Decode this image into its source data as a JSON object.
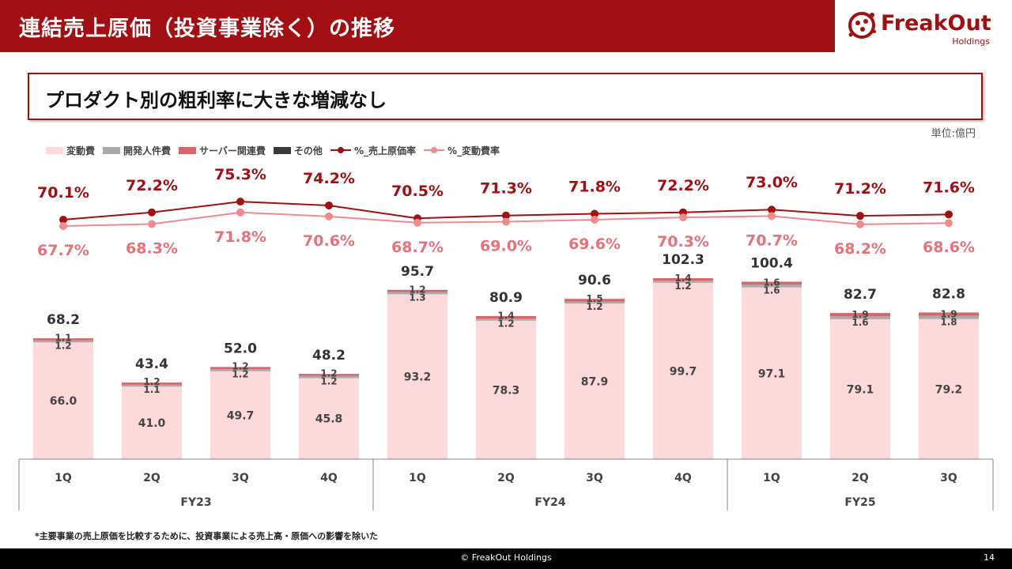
{
  "header": {
    "title": "連結売上原価（投資事業除く）の推移",
    "logo_text": "FreakOut",
    "logo_sub": "Holdings"
  },
  "subtitle": "プロダクト別の粗利率に大きな増減なし",
  "unit": "単位:億円",
  "legend": [
    {
      "label": "変動費",
      "kind": "bar",
      "color": "#fbd8da"
    },
    {
      "label": "開発人件費",
      "kind": "bar",
      "color": "#aaaaaa"
    },
    {
      "label": "サーバー関連費",
      "kind": "bar",
      "color": "#d9646b"
    },
    {
      "label": "その他",
      "kind": "bar",
      "color": "#3a3a3a"
    },
    {
      "label": "%_売上原価率",
      "kind": "line",
      "color": "#a30e12"
    },
    {
      "label": "%_変動費率",
      "kind": "line",
      "color": "#f08a8f"
    }
  ],
  "chart_data": {
    "type": "bar",
    "stacked": true,
    "categories": [
      "1Q",
      "2Q",
      "3Q",
      "4Q",
      "1Q",
      "2Q",
      "3Q",
      "4Q",
      "1Q",
      "2Q",
      "3Q"
    ],
    "groups": [
      {
        "label": "FY23",
        "count": 4
      },
      {
        "label": "FY24",
        "count": 4
      },
      {
        "label": "FY25",
        "count": 3
      }
    ],
    "totals": [
      "68.2",
      "43.4",
      "52.0",
      "48.2",
      "95.7",
      "80.9",
      "90.6",
      "102.3",
      "100.4",
      "82.7",
      "82.8"
    ],
    "series": [
      {
        "name": "変動費",
        "color": "#fbd8da",
        "values": [
          66.0,
          41.0,
          49.7,
          45.8,
          93.2,
          78.3,
          87.9,
          99.7,
          97.1,
          79.1,
          79.2
        ],
        "labels": [
          "66.0",
          "41.0",
          "49.7",
          "45.8",
          "93.2",
          "78.3",
          "87.9",
          "99.7",
          "97.1",
          "79.1",
          "79.2"
        ]
      },
      {
        "name": "開発人件費",
        "color": "#aaaaaa",
        "values": [
          1.2,
          1.1,
          1.2,
          1.2,
          1.3,
          1.2,
          1.2,
          1.2,
          1.6,
          1.6,
          1.8
        ],
        "labels": [
          "1.2",
          "1.1",
          "1.2",
          "1.2",
          "1.3",
          "1.2",
          "1.2",
          "1.2",
          "1.6",
          "1.6",
          "1.8"
        ]
      },
      {
        "name": "サーバー関連費",
        "color": "#d9646b",
        "values": [
          1.1,
          1.2,
          1.2,
          1.2,
          1.2,
          1.4,
          1.5,
          1.4,
          1.6,
          1.9,
          1.9
        ],
        "labels": [
          "1.1",
          "1.2",
          "1.2",
          "1.2",
          "1.2",
          "1.4",
          "1.5",
          "1.4",
          "1.6",
          "1.9",
          "1.9"
        ]
      },
      {
        "name": "その他",
        "color": "#3a3a3a",
        "values": [
          0.0,
          0.0,
          0.0,
          0.0,
          0.0,
          0.0,
          0.0,
          0.0,
          0.0,
          0.0,
          0.0
        ]
      }
    ],
    "lines": [
      {
        "name": "%_売上原価率",
        "color": "#a30e12",
        "values": [
          70.1,
          72.2,
          75.3,
          74.2,
          70.5,
          71.3,
          71.8,
          72.2,
          73.0,
          71.2,
          71.6
        ],
        "labels": [
          "70.1%",
          "72.2%",
          "75.3%",
          "74.2%",
          "70.5%",
          "71.3%",
          "71.8%",
          "72.2%",
          "73.0%",
          "71.2%",
          "71.6%"
        ]
      },
      {
        "name": "%_変動費率",
        "color": "#f08a8f",
        "values": [
          67.7,
          68.3,
          71.8,
          70.6,
          68.7,
          69.0,
          69.6,
          70.3,
          70.7,
          68.2,
          68.6
        ],
        "labels": [
          "67.7%",
          "68.3%",
          "71.8%",
          "70.6%",
          "68.7%",
          "69.0%",
          "69.6%",
          "70.3%",
          "70.7%",
          "68.2%",
          "68.6%"
        ]
      }
    ],
    "ylim": [
      0,
      110
    ]
  },
  "footnote": "*主要事業の売上原価を比較するために、投資事業による売上高・原価への影響を除いた",
  "footer": {
    "copyright": "© FreakOut Holdings",
    "page": "14"
  }
}
